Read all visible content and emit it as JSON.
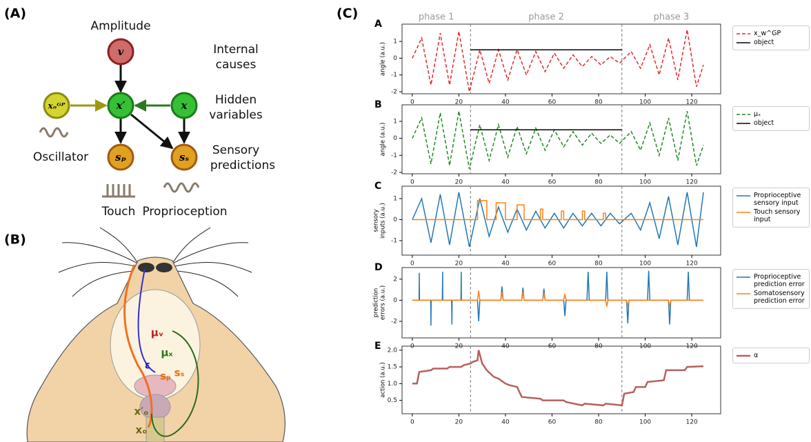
{
  "panel_labels": [
    "(A)",
    "(B)",
    "(C)"
  ],
  "diagram": {
    "nodes": [
      "v",
      "x′",
      "x",
      "xₒᴳᴾ",
      "sₚ",
      "sₛ"
    ],
    "texts": {
      "amplitude": "Amplitude",
      "internal": [
        "Internal",
        "causes"
      ],
      "hidden": [
        "Hidden",
        "variables"
      ],
      "sensory": [
        "Sensory",
        "predictions"
      ],
      "oscillator": "Oscillator",
      "touch": "Touch",
      "proprioception": "Proprioception"
    }
  },
  "rat": {
    "labels": [
      "μᵥ",
      "μₓ",
      "ε",
      "sₚ",
      "sₛ",
      "x′ₒ",
      "xₒ"
    ]
  },
  "chart_data": [
    {
      "type": "line",
      "panel": "A",
      "ylabel": [
        "angle (a.u.)"
      ],
      "phases": [
        "phase 1",
        "phase 2",
        "phase 3"
      ],
      "vlines": [
        25,
        90
      ],
      "x": [
        0,
        4,
        8,
        12,
        16,
        20,
        24.5,
        29,
        33,
        37,
        41,
        45,
        49,
        53,
        57,
        61,
        65,
        69,
        73,
        77,
        81,
        85,
        89,
        94,
        98,
        102,
        106,
        110,
        114,
        118,
        122,
        125
      ],
      "xlim": [
        -4.4,
        132.4
      ],
      "xticks": [
        0,
        20,
        40,
        60,
        80,
        100,
        120
      ],
      "ylim": [
        -2.12,
        2.03
      ],
      "yticks": [
        -2,
        -1,
        0,
        1
      ],
      "series": [
        {
          "name": "x_w^GP",
          "color": "#e8262a",
          "dash": true,
          "values": [
            0,
            1.2,
            -1.6,
            1.5,
            -1.6,
            1.6,
            -2.0,
            0.5,
            -1.5,
            0.5,
            -1.3,
            0.5,
            -1.0,
            0.4,
            -0.8,
            0.3,
            -0.6,
            0.2,
            -0.5,
            0.1,
            -0.4,
            0.1,
            -0.3,
            0.4,
            -0.6,
            0.8,
            -1.0,
            1.2,
            -1.3,
            1.7,
            -1.7,
            -0.4
          ]
        },
        {
          "name": "object",
          "color": "#000000",
          "dash": false,
          "x": [
            25,
            90
          ],
          "values": [
            0.5,
            0.5
          ]
        }
      ]
    },
    {
      "type": "line",
      "panel": "B",
      "ylabel": [
        "angle (a.u.)"
      ],
      "vlines": [
        25,
        90
      ],
      "x": [
        0,
        4,
        8,
        12,
        16,
        20,
        24.5,
        29,
        33,
        37,
        41,
        45,
        49,
        53,
        57,
        61,
        65,
        69,
        73,
        77,
        81,
        85,
        89,
        94,
        98,
        102,
        106,
        110,
        114,
        118,
        122,
        125
      ],
      "xlim": [
        -4.4,
        132.4
      ],
      "xticks": [
        0,
        20,
        40,
        60,
        80,
        100,
        120
      ],
      "ylim": [
        -2.08,
        1.97
      ],
      "yticks": [
        -2,
        -1,
        0,
        1
      ],
      "series": [
        {
          "name": "μₓ",
          "color": "#1f8a1f",
          "dash": true,
          "values": [
            0,
            1.2,
            -1.5,
            1.5,
            -1.6,
            1.6,
            -1.8,
            0.8,
            -1.3,
            0.8,
            -1.1,
            0.7,
            -0.9,
            0.6,
            -0.7,
            0.5,
            -0.5,
            0.4,
            -0.4,
            0.3,
            -0.3,
            0.2,
            -0.3,
            0.4,
            -0.7,
            0.9,
            -1.0,
            1.2,
            -1.3,
            1.6,
            -1.6,
            -0.4
          ]
        },
        {
          "name": "object",
          "color": "#000000",
          "dash": false,
          "x": [
            25,
            90
          ],
          "values": [
            0.5,
            0.5
          ]
        }
      ]
    },
    {
      "type": "line",
      "panel": "C",
      "ylabel": [
        "sensory",
        "inputs (a.u.)"
      ],
      "vlines": [
        25,
        90
      ],
      "x": [
        0,
        4,
        8,
        12,
        16,
        20,
        24.5,
        29,
        33,
        37,
        41,
        45,
        49,
        53,
        57,
        61,
        65,
        69,
        73,
        77,
        81,
        85,
        89,
        94,
        98,
        102,
        106,
        110,
        114,
        118,
        122,
        125
      ],
      "xlim": [
        -4.4,
        132.4
      ],
      "xticks": [
        0,
        20,
        40,
        60,
        80,
        100,
        120
      ],
      "ylim": [
        -1.69,
        1.59
      ],
      "yticks": [
        -1,
        0,
        1
      ],
      "series": [
        {
          "name": "Proprioceptive sensory input",
          "color": "#1f77b4",
          "dash": false,
          "values": [
            0,
            1.0,
            -1.1,
            1.2,
            -1.2,
            1.3,
            -1.3,
            1.0,
            -0.8,
            0.6,
            -0.6,
            0.5,
            -0.5,
            0.4,
            -0.4,
            0.3,
            -0.4,
            0.3,
            -0.3,
            0.3,
            -0.3,
            0.3,
            -0.2,
            0.3,
            -0.5,
            0.8,
            -0.9,
            1.1,
            -1.2,
            1.3,
            -1.3,
            1.3
          ]
        },
        {
          "name": "Touch sensory input",
          "color": "#ff7f0e",
          "dash": false,
          "x": [
            0,
            28,
            28,
            32,
            32,
            36,
            36,
            40,
            40,
            45,
            45,
            48,
            48,
            55,
            55,
            56,
            56,
            64,
            64,
            65,
            65,
            73,
            73,
            74,
            74,
            82,
            82,
            83,
            83,
            125
          ],
          "values": [
            0,
            0,
            0.9,
            0.9,
            0,
            0,
            0.8,
            0.8,
            0,
            0,
            0.7,
            0.7,
            0,
            0,
            0.5,
            0.5,
            0,
            0,
            0.4,
            0.4,
            0,
            0,
            0.4,
            0.4,
            0,
            0,
            0.3,
            0.3,
            0,
            0
          ]
        }
      ]
    },
    {
      "type": "line",
      "panel": "D",
      "ylabel": [
        "prediction",
        "errors (a.u.)"
      ],
      "vlines": [
        25,
        90
      ],
      "xlim": [
        -4.4,
        132.4
      ],
      "xticks": [
        0,
        20,
        40,
        60,
        80,
        100,
        120
      ],
      "ylim": [
        -3.57,
        3.1
      ],
      "yticks": [
        -2,
        0,
        2
      ],
      "series": [
        {
          "name": "Proprioceptive prediction error",
          "color": "#1f77b4",
          "dash": false,
          "x": [
            0,
            2.9,
            3,
            3.1,
            7.9,
            8,
            8.1,
            12.9,
            13,
            13.1,
            16.9,
            17,
            17.1,
            20.9,
            21,
            21.1,
            28,
            28.5,
            29,
            38,
            38.5,
            39,
            47,
            47.5,
            48,
            56,
            56.5,
            57,
            65,
            65.5,
            66,
            75,
            75.5,
            76,
            83,
            83.5,
            84,
            92,
            92.5,
            93,
            101,
            101.5,
            102,
            110,
            110.5,
            111,
            118,
            118.5,
            119,
            125
          ],
          "values": [
            0,
            0,
            2.6,
            0,
            0,
            -2.4,
            0,
            0,
            2.7,
            0,
            0,
            -2.3,
            0,
            0,
            2.7,
            0,
            0,
            -2.0,
            0,
            0,
            1.3,
            0,
            0,
            1.2,
            0,
            0,
            1.1,
            0,
            0,
            -1.5,
            0,
            0,
            2.7,
            0,
            0,
            2.7,
            0,
            0,
            -2.2,
            0,
            0,
            2.8,
            0,
            0,
            -2.3,
            0,
            0,
            2.7,
            0,
            0
          ]
        },
        {
          "name": "Somatosensory prediction error",
          "color": "#ff7f0e",
          "dash": false,
          "x": [
            0,
            28,
            28.5,
            29,
            38,
            38.5,
            39,
            47,
            47.5,
            48,
            56,
            56.5,
            57,
            65,
            65.5,
            66,
            83,
            83.5,
            84,
            92,
            92.5,
            93,
            110,
            110.5,
            111,
            125
          ],
          "values": [
            0,
            0,
            0.9,
            0,
            0,
            0.8,
            0,
            0,
            0.8,
            0,
            0,
            0.7,
            0,
            0,
            0.6,
            0,
            0,
            -0.6,
            0,
            0,
            -0.6,
            0,
            0,
            -0.6,
            0,
            0
          ]
        }
      ]
    },
    {
      "type": "line",
      "panel": "E",
      "ylabel": [
        "action (a.u.)"
      ],
      "vlines": [
        25,
        90
      ],
      "x": [
        0,
        2,
        3,
        8,
        9,
        15,
        16,
        21,
        22,
        25,
        26,
        28,
        28.5,
        30,
        32,
        35,
        37,
        40,
        42,
        45,
        47,
        55,
        56,
        65,
        66,
        73,
        74,
        82,
        83,
        90,
        91,
        95,
        96,
        100,
        101,
        108,
        109,
        117,
        118,
        125
      ],
      "xlim": [
        -4.4,
        132.4
      ],
      "xticks": [
        0,
        20,
        40,
        60,
        80,
        100,
        120
      ],
      "ylim": [
        0.1,
        2.12
      ],
      "yticks": [
        0.5,
        {
          "value": 1,
          "label": "1.0"
        },
        1.5,
        {
          "value": 2,
          "label": "2.0"
        }
      ],
      "series": [
        {
          "name": "α",
          "color": "#b5605c",
          "dash": false,
          "width": 2.5,
          "values": [
            1.0,
            1.0,
            1.35,
            1.4,
            1.45,
            1.45,
            1.5,
            1.5,
            1.55,
            1.6,
            1.65,
            1.7,
            2.0,
            1.6,
            1.4,
            1.2,
            1.15,
            1.0,
            0.95,
            0.9,
            0.6,
            0.55,
            0.5,
            0.5,
            0.45,
            0.35,
            0.4,
            0.35,
            0.4,
            0.35,
            0.7,
            0.75,
            0.9,
            0.9,
            1.05,
            1.1,
            1.4,
            1.4,
            1.5,
            1.52
          ]
        }
      ]
    }
  ]
}
